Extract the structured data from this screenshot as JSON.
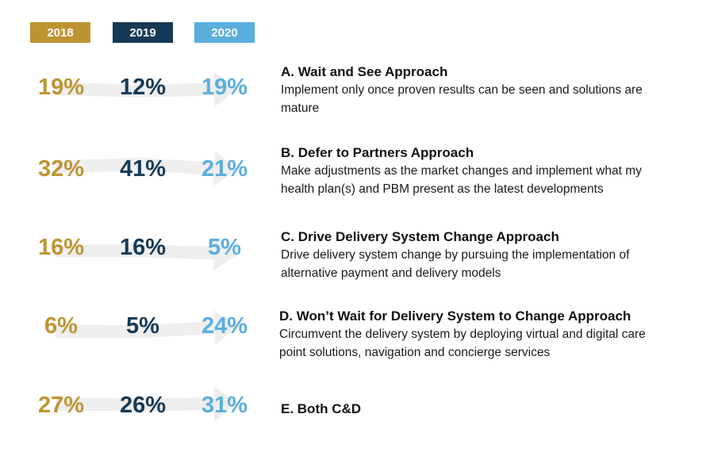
{
  "chart_data": {
    "type": "table",
    "years": [
      "2018",
      "2019",
      "2020"
    ],
    "year_colors": [
      "#BE9433",
      "#153A57",
      "#5AAEDE"
    ],
    "arrow_color": "#EEEEEE",
    "rows": [
      {
        "key": "A",
        "values": [
          19,
          12,
          19
        ],
        "labels": [
          "19%",
          "12%",
          "19%"
        ],
        "title": "A. Wait and See Approach",
        "description": "Implement only once proven results can be seen and solutions are mature"
      },
      {
        "key": "B",
        "values": [
          32,
          41,
          21
        ],
        "labels": [
          "32%",
          "41%",
          "21%"
        ],
        "title": "B. Defer to Partners Approach",
        "description": "Make adjustments as the market changes and implement what my health plan(s) and PBM present as the latest developments"
      },
      {
        "key": "C",
        "values": [
          16,
          16,
          5
        ],
        "labels": [
          "16%",
          "16%",
          "5%"
        ],
        "title": "C. Drive Delivery System Change Approach",
        "description": "Drive delivery system change by pursuing the implementation of alternative payment and delivery models"
      },
      {
        "key": "D",
        "values": [
          6,
          5,
          24
        ],
        "labels": [
          "6%",
          "5%",
          "24%"
        ],
        "title": "D. Won’t Wait for Delivery System to Change Approach",
        "description": "Circumvent the delivery system by deploying virtual and digital care point solutions, navigation and concierge services"
      },
      {
        "key": "E",
        "values": [
          27,
          26,
          31
        ],
        "labels": [
          "27%",
          "26%",
          "31%"
        ],
        "title": "E. Both C&D",
        "description": ""
      }
    ]
  }
}
